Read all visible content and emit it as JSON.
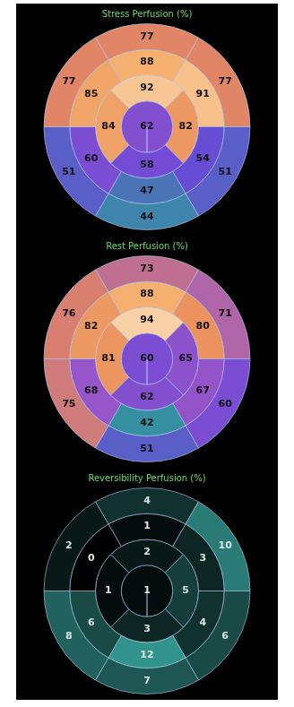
{
  "chart_data": [
    {
      "type": "polar_map",
      "title": "Stress Perfusion (%)",
      "color": "thermal",
      "data_labels": true,
      "rings": [
        [
          77,
          77,
          51,
          44,
          51,
          77
        ],
        [
          88,
          91,
          54,
          47,
          60,
          85
        ],
        [
          92,
          82,
          58,
          84
        ],
        [
          62
        ]
      ]
    },
    {
      "type": "polar_map",
      "title": "Rest Perfusion (%)",
      "color": "thermal",
      "data_labels": true,
      "rings": [
        [
          73,
          71,
          60,
          51,
          75,
          76
        ],
        [
          88,
          80,
          67,
          42,
          68,
          82
        ],
        [
          94,
          65,
          62,
          81
        ],
        [
          60
        ]
      ]
    },
    {
      "type": "polar_map",
      "title": "Reversibility Perfusion (%)",
      "color": "teal",
      "data_labels": true,
      "rings": [
        [
          4,
          10,
          6,
          7,
          8,
          2
        ],
        [
          1,
          3,
          4,
          12,
          6,
          0
        ],
        [
          2,
          5,
          3,
          1
        ],
        [
          1
        ]
      ]
    }
  ]
}
